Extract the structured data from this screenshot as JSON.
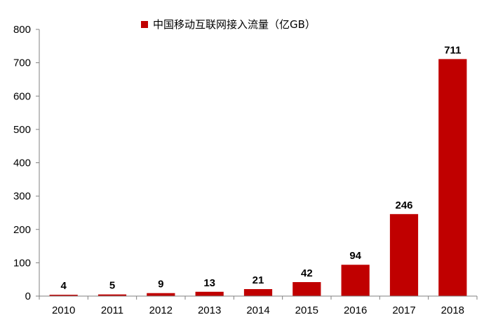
{
  "chart_data": {
    "type": "bar",
    "categories": [
      "2010",
      "2011",
      "2012",
      "2013",
      "2014",
      "2015",
      "2016",
      "2017",
      "2018"
    ],
    "series": [
      {
        "name": "中国移动互联网接入流量（亿GB）",
        "values": [
          4,
          5,
          9,
          13,
          21,
          42,
          94,
          246,
          711
        ],
        "color": "#C00000"
      }
    ],
    "ylim": [
      0,
      800
    ],
    "yticks": [
      0,
      100,
      200,
      300,
      400,
      500,
      600,
      700,
      800
    ],
    "grid": false,
    "legend_position": "top-center",
    "data_labels": [
      "4",
      "5",
      "9",
      "13",
      "21",
      "42",
      "94",
      "246",
      "711"
    ]
  }
}
